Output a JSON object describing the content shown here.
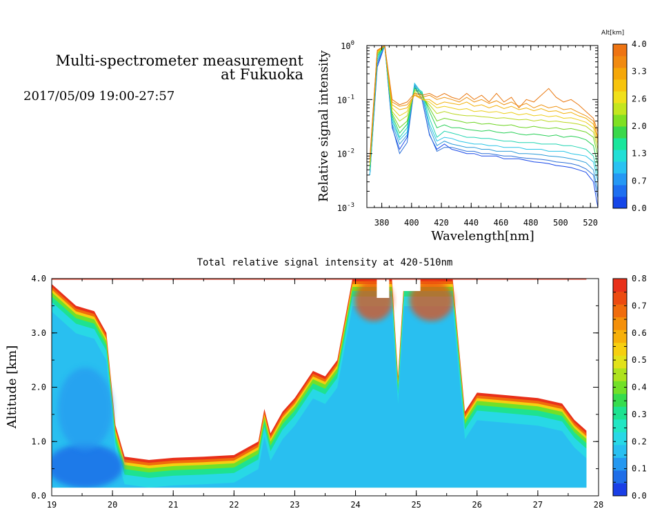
{
  "header": {
    "title_line1": "Multi-spectrometer measurement",
    "title_line2": "at Fukuoka",
    "datetime": "2017/05/09 19:00-27:57"
  },
  "chart_data": [
    {
      "type": "line",
      "ylabel": "Relative signal intensity",
      "xlabel": "Wavelength[nm]",
      "xlim": [
        370,
        525
      ],
      "xticks": [
        "380",
        "400",
        "420",
        "440",
        "460",
        "480",
        "500",
        "520"
      ],
      "y_scale": "log",
      "ylim": [
        0.001,
        1
      ],
      "yticks": [
        {
          "base": "10",
          "exp": "0"
        },
        {
          "base": "10",
          "exp": "-1"
        },
        {
          "base": "10",
          "exp": "-2"
        },
        {
          "base": "10",
          "exp": "-3"
        }
      ],
      "colorbar": {
        "title": "Alt[km]",
        "tick_labels": [
          "4.0",
          "3.3",
          "2.6",
          "2.0",
          "1.3",
          "0.7",
          "0.0"
        ],
        "colors": [
          "#1546e8",
          "#1e6ff0",
          "#2598f4",
          "#29c2f2",
          "#22dfd6",
          "#19e69c",
          "#3ad84a",
          "#7fe022",
          "#c3e61e",
          "#f0e01a",
          "#f7c40c",
          "#f5a708",
          "#f18a10",
          "#ee7412"
        ]
      },
      "x": [
        372,
        377,
        382,
        387,
        392,
        397,
        402,
        407,
        412,
        417,
        422,
        427,
        432,
        437,
        442,
        447,
        452,
        457,
        462,
        467,
        472,
        477,
        482,
        487,
        492,
        497,
        502,
        507,
        512,
        517,
        522,
        525
      ],
      "series": [
        {
          "color": "#1546e8",
          "values": [
            0.004,
            0.4,
            1.0,
            0.03,
            0.012,
            0.02,
            0.17,
            0.1,
            0.022,
            0.012,
            0.015,
            0.012,
            0.011,
            0.01,
            0.01,
            0.009,
            0.009,
            0.009,
            0.008,
            0.008,
            0.008,
            0.0075,
            0.007,
            0.0068,
            0.0065,
            0.006,
            0.0058,
            0.0055,
            0.005,
            0.0045,
            0.003,
            0.001
          ]
        },
        {
          "color": "#2b6fd8",
          "values": [
            0.004,
            0.45,
            1.0,
            0.032,
            0.01,
            0.016,
            0.18,
            0.1,
            0.023,
            0.011,
            0.013,
            0.013,
            0.012,
            0.011,
            0.011,
            0.01,
            0.01,
            0.0095,
            0.009,
            0.009,
            0.0085,
            0.0082,
            0.008,
            0.0078,
            0.0075,
            0.007,
            0.0068,
            0.0065,
            0.006,
            0.0052,
            0.004,
            0.0015
          ]
        },
        {
          "color": "#2a9ad8",
          "values": [
            0.004,
            0.5,
            1.0,
            0.035,
            0.015,
            0.022,
            0.19,
            0.12,
            0.03,
            0.014,
            0.017,
            0.015,
            0.014,
            0.013,
            0.013,
            0.012,
            0.012,
            0.011,
            0.011,
            0.011,
            0.01,
            0.01,
            0.0098,
            0.0095,
            0.009,
            0.0088,
            0.0085,
            0.008,
            0.0075,
            0.0068,
            0.005,
            0.002
          ]
        },
        {
          "color": "#27c4e6",
          "values": [
            0.004,
            0.55,
            1.0,
            0.04,
            0.018,
            0.025,
            0.2,
            0.13,
            0.035,
            0.017,
            0.02,
            0.019,
            0.017,
            0.016,
            0.015,
            0.015,
            0.014,
            0.014,
            0.013,
            0.013,
            0.013,
            0.012,
            0.012,
            0.012,
            0.011,
            0.011,
            0.011,
            0.01,
            0.0095,
            0.009,
            0.007,
            0.003
          ]
        },
        {
          "color": "#1fd4b0",
          "values": [
            0.005,
            0.6,
            1.0,
            0.045,
            0.02,
            0.03,
            0.17,
            0.14,
            0.045,
            0.02,
            0.026,
            0.024,
            0.022,
            0.02,
            0.02,
            0.019,
            0.019,
            0.018,
            0.017,
            0.017,
            0.016,
            0.016,
            0.016,
            0.015,
            0.015,
            0.015,
            0.014,
            0.014,
            0.013,
            0.012,
            0.009,
            0.004
          ]
        },
        {
          "color": "#27cf55",
          "values": [
            0.005,
            0.65,
            1.0,
            0.05,
            0.024,
            0.035,
            0.16,
            0.13,
            0.06,
            0.03,
            0.034,
            0.03,
            0.03,
            0.028,
            0.027,
            0.026,
            0.027,
            0.025,
            0.024,
            0.025,
            0.023,
            0.022,
            0.023,
            0.022,
            0.021,
            0.022,
            0.02,
            0.021,
            0.02,
            0.018,
            0.014,
            0.006
          ]
        },
        {
          "color": "#6cd421",
          "values": [
            0.006,
            0.7,
            1.0,
            0.055,
            0.03,
            0.04,
            0.15,
            0.12,
            0.07,
            0.04,
            0.045,
            0.042,
            0.04,
            0.037,
            0.038,
            0.035,
            0.036,
            0.034,
            0.033,
            0.034,
            0.031,
            0.03,
            0.032,
            0.03,
            0.029,
            0.03,
            0.028,
            0.029,
            0.027,
            0.025,
            0.02,
            0.009
          ]
        },
        {
          "color": "#b9d61d",
          "values": [
            0.006,
            0.72,
            1.0,
            0.06,
            0.04,
            0.05,
            0.14,
            0.11,
            0.08,
            0.055,
            0.06,
            0.055,
            0.052,
            0.05,
            0.05,
            0.048,
            0.047,
            0.045,
            0.046,
            0.044,
            0.042,
            0.043,
            0.04,
            0.042,
            0.039,
            0.04,
            0.038,
            0.037,
            0.035,
            0.032,
            0.025,
            0.012
          ]
        },
        {
          "color": "#eccd16",
          "values": [
            0.007,
            0.75,
            1.0,
            0.07,
            0.05,
            0.06,
            0.13,
            0.1,
            0.09,
            0.07,
            0.075,
            0.07,
            0.065,
            0.068,
            0.06,
            0.062,
            0.058,
            0.06,
            0.055,
            0.058,
            0.052,
            0.055,
            0.05,
            0.052,
            0.048,
            0.05,
            0.045,
            0.046,
            0.042,
            0.038,
            0.03,
            0.015
          ]
        },
        {
          "color": "#f2b20a",
          "values": [
            0.007,
            0.78,
            1.0,
            0.08,
            0.065,
            0.07,
            0.12,
            0.1,
            0.1,
            0.08,
            0.09,
            0.085,
            0.08,
            0.09,
            0.075,
            0.08,
            0.07,
            0.078,
            0.068,
            0.075,
            0.065,
            0.07,
            0.062,
            0.068,
            0.06,
            0.062,
            0.055,
            0.058,
            0.05,
            0.045,
            0.035,
            0.018
          ]
        },
        {
          "color": "#ef9210",
          "values": [
            0.008,
            0.8,
            1.0,
            0.09,
            0.075,
            0.08,
            0.12,
            0.11,
            0.12,
            0.1,
            0.11,
            0.1,
            0.09,
            0.11,
            0.09,
            0.1,
            0.085,
            0.095,
            0.08,
            0.09,
            0.075,
            0.085,
            0.07,
            0.08,
            0.07,
            0.075,
            0.065,
            0.068,
            0.058,
            0.05,
            0.04,
            0.02
          ]
        },
        {
          "color": "#e9770e",
          "values": [
            0.008,
            0.82,
            1.0,
            0.1,
            0.08,
            0.09,
            0.13,
            0.12,
            0.13,
            0.11,
            0.13,
            0.11,
            0.1,
            0.13,
            0.1,
            0.12,
            0.09,
            0.13,
            0.09,
            0.11,
            0.07,
            0.1,
            0.09,
            0.12,
            0.16,
            0.11,
            0.09,
            0.1,
            0.08,
            0.06,
            0.045,
            0.025
          ]
        }
      ]
    },
    {
      "type": "heatmap",
      "title": "Total relative signal intensity at 420-510nm",
      "ylabel": "Altitude [km]",
      "xlim": [
        19,
        28
      ],
      "xticks": [
        "19",
        "20",
        "21",
        "22",
        "23",
        "24",
        "25",
        "26",
        "27",
        "28"
      ],
      "ylim": [
        0,
        4
      ],
      "yticks": [
        "0.0",
        "1.0",
        "2.0",
        "3.0",
        "4.0"
      ],
      "colorbar": {
        "tick_labels": [
          "0.0",
          "0.1",
          "0.2",
          "0.3",
          "0.4",
          "0.5",
          "0.6",
          "0.7",
          "0.8"
        ],
        "range": [
          0,
          0.8
        ],
        "colors": [
          "#1a3fe6",
          "#1f6ee8",
          "#2598f0",
          "#29bff0",
          "#28d8e6",
          "#22e6c4",
          "#1ee290",
          "#36dc4e",
          "#72e028",
          "#aee21e",
          "#e2e21a",
          "#f6cf10",
          "#f6b00a",
          "#f4900a",
          "#f06c0c",
          "#ec4a10",
          "#e8301a"
        ]
      },
      "cloud_top_km": [
        {
          "x": 19.0,
          "y": 3.9
        },
        {
          "x": 19.4,
          "y": 3.5
        },
        {
          "x": 19.7,
          "y": 3.4
        },
        {
          "x": 19.9,
          "y": 3.0
        },
        {
          "x": 20.05,
          "y": 1.3
        },
        {
          "x": 20.2,
          "y": 0.72
        },
        {
          "x": 20.6,
          "y": 0.66
        },
        {
          "x": 21.0,
          "y": 0.7
        },
        {
          "x": 21.5,
          "y": 0.72
        },
        {
          "x": 22.0,
          "y": 0.75
        },
        {
          "x": 22.4,
          "y": 1.0
        },
        {
          "x": 22.5,
          "y": 1.6
        },
        {
          "x": 22.6,
          "y": 1.15
        },
        {
          "x": 22.8,
          "y": 1.55
        },
        {
          "x": 23.0,
          "y": 1.8
        },
        {
          "x": 23.3,
          "y": 2.3
        },
        {
          "x": 23.5,
          "y": 2.2
        },
        {
          "x": 23.7,
          "y": 2.5
        },
        {
          "x": 23.95,
          "y": 4.0
        },
        {
          "x": 24.6,
          "y": 4.0
        },
        {
          "x": 24.7,
          "y": 2.2
        },
        {
          "x": 24.8,
          "y": 4.0
        },
        {
          "x": 25.6,
          "y": 4.0
        },
        {
          "x": 25.8,
          "y": 1.55
        },
        {
          "x": 26.0,
          "y": 1.9
        },
        {
          "x": 26.5,
          "y": 1.85
        },
        {
          "x": 27.0,
          "y": 1.8
        },
        {
          "x": 27.4,
          "y": 1.7
        },
        {
          "x": 27.6,
          "y": 1.4
        },
        {
          "x": 27.8,
          "y": 1.2
        }
      ]
    }
  ]
}
